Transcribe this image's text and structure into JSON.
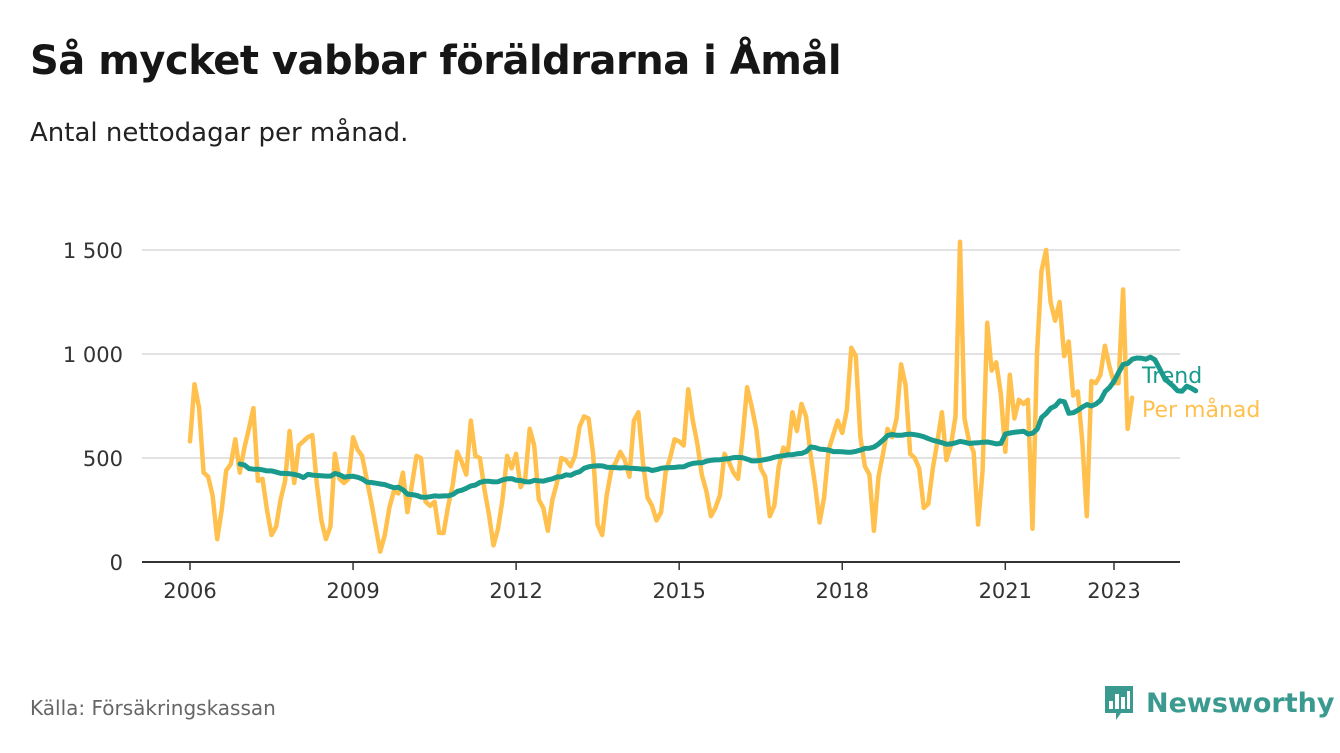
{
  "title": "Så mycket vabbar föräldrarna i Åmål",
  "subtitle": "Antal nettodagar per månad.",
  "source": "Källa: Försäkringskassan",
  "brand": {
    "name": "Newsworthy",
    "icon": "bar-chart-speech-bubble-icon",
    "color": "#3a9a90"
  },
  "chart_data": {
    "type": "line",
    "title": "Så mycket vabbar föräldrarna i Åmål",
    "subtitle": "Antal nettodagar per månad.",
    "xlabel": "",
    "ylabel": "",
    "x_ticks": [
      2006,
      2009,
      2012,
      2015,
      2018,
      2021,
      2023
    ],
    "x_tick_labels": [
      "2006",
      "2009",
      "2012",
      "2015",
      "2018",
      "2021",
      "2023"
    ],
    "y_ticks": [
      0,
      500,
      1000,
      1500
    ],
    "y_tick_labels": [
      "0",
      "500",
      "1 000",
      "1 500"
    ],
    "xlim": [
      2005.15,
      2024.1
    ],
    "ylim": [
      0,
      1550
    ],
    "grid": "horizontal",
    "legend": "direct labels at line ends (right)",
    "series": [
      {
        "name": "Trend",
        "color": "#1a9a8c",
        "start": 2006.92,
        "step": 0.0833333,
        "values": [
          471,
          466,
          449,
          446,
          446,
          443,
          438,
          438,
          432,
          426,
          426,
          424,
          421,
          416,
          406,
          421,
          418,
          416,
          415,
          413,
          413,
          426,
          419,
          408,
          411,
          412,
          407,
          399,
          384,
          382,
          379,
          375,
          372,
          364,
          357,
          359,
          346,
          326,
          324,
          320,
          312,
          311,
          314,
          318,
          316,
          318,
          318,
          325,
          340,
          345,
          355,
          366,
          370,
          383,
          388,
          388,
          385,
          386,
          395,
          400,
          401,
          393,
          392,
          386,
          385,
          393,
          390,
          389,
          395,
          400,
          409,
          410,
          419,
          417,
          428,
          434,
          451,
          458,
          461,
          463,
          462,
          456,
          455,
          454,
          452,
          454,
          451,
          450,
          448,
          446,
          447,
          440,
          444,
          451,
          453,
          454,
          455,
          457,
          458,
          468,
          474,
          477,
          477,
          485,
          489,
          491,
          492,
          495,
          497,
          502,
          503,
          501,
          494,
          486,
          486,
          489,
          493,
          497,
          504,
          508,
          511,
          516,
          516,
          520,
          522,
          531,
          553,
          550,
          543,
          541,
          538,
          531,
          531,
          530,
          528,
          528,
          532,
          538,
          546,
          547,
          553,
          568,
          587,
          608,
          613,
          609,
          609,
          613,
          615,
          612,
          608,
          602,
          593,
          585,
          580,
          573,
          566,
          568,
          573,
          580,
          576,
          570,
          572,
          573,
          576,
          577,
          573,
          568,
          570,
          616,
          620,
          624,
          626,
          629,
          615,
          619,
          639,
          695,
          714,
          740,
          750,
          775,
          770,
          715,
          718,
          730,
          745,
          757,
          750,
          760,
          778,
          819,
          840,
          870,
          912,
          950,
          955,
          975,
          981,
          980,
          975,
          985,
          972,
          931,
          889,
          865,
          846,
          823,
          821,
          845,
          836,
          823
        ]
      },
      {
        "name": "Per månad",
        "color": "#ffc04d",
        "start": 2006.0,
        "step": 0.0833333,
        "values": [
          580,
          855,
          740,
          430,
          410,
          320,
          110,
          250,
          440,
          470,
          590,
          430,
          550,
          640,
          740,
          390,
          400,
          250,
          130,
          170,
          300,
          390,
          630,
          380,
          560,
          580,
          600,
          610,
          380,
          200,
          110,
          170,
          520,
          400,
          380,
          400,
          600,
          540,
          510,
          400,
          290,
          170,
          50,
          130,
          260,
          340,
          330,
          430,
          240,
          370,
          510,
          500,
          290,
          270,
          290,
          140,
          140,
          270,
          370,
          530,
          480,
          420,
          680,
          510,
          500,
          350,
          230,
          80,
          160,
          300,
          510,
          450,
          520,
          360,
          400,
          640,
          560,
          300,
          260,
          150,
          300,
          380,
          500,
          490,
          460,
          510,
          650,
          700,
          690,
          520,
          180,
          130,
          320,
          440,
          480,
          530,
          490,
          410,
          680,
          720,
          480,
          310,
          270,
          200,
          240,
          430,
          500,
          590,
          580,
          560,
          830,
          680,
          570,
          420,
          340,
          220,
          260,
          320,
          520,
          480,
          430,
          400,
          600,
          840,
          750,
          640,
          450,
          410,
          220,
          270,
          460,
          550,
          530,
          720,
          630,
          760,
          700,
          520,
          370,
          190,
          310,
          540,
          610,
          680,
          620,
          730,
          1030,
          990,
          600,
          460,
          420,
          150,
          410,
          520,
          640,
          600,
          690,
          950,
          850,
          520,
          500,
          450,
          260,
          280,
          450,
          580,
          720,
          490,
          560,
          700,
          1540,
          690,
          580,
          530,
          180,
          440,
          1150,
          920,
          960,
          810,
          530,
          900,
          690,
          780,
          760,
          780,
          160,
          1000,
          1400,
          1500,
          1250,
          1160,
          1250,
          990,
          1060,
          800,
          820,
          580,
          220,
          870,
          860,
          900,
          1040,
          940,
          860,
          860,
          1310,
          640,
          790
        ]
      }
    ]
  }
}
